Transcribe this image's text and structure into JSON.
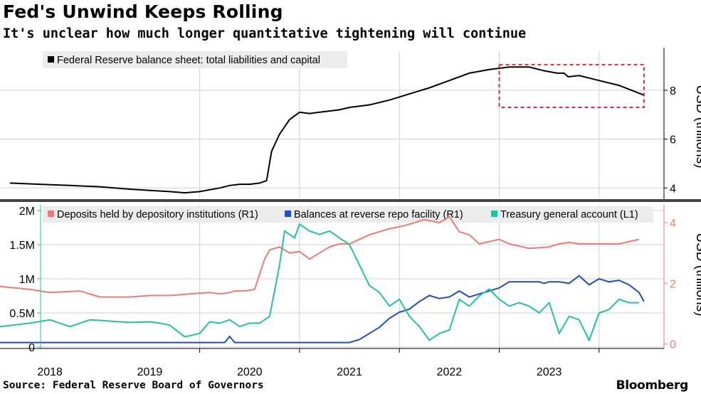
{
  "header": {
    "title": "Fed's Unwind Keeps Rolling",
    "subtitle": "It's unclear how much longer quantitative tightening will continue"
  },
  "footer": {
    "source": "Source: Federal Reserve Board of Governors",
    "brand": "Bloomberg"
  },
  "colors": {
    "balance_sheet": "#000000",
    "deposits": "#ef7a72",
    "reverse_repo": "#1f4fbf",
    "tga": "#1ec4a0",
    "highlight_box": "#e8273c",
    "grid": "#cfcfcf",
    "legend_bg": "#ececec"
  },
  "chart_data": [
    {
      "type": "line",
      "panel": "top",
      "series": [
        {
          "name": "Federal Reserve balance sheet: total liabilities and capital",
          "axis": "right",
          "x": [
            2017.6,
            2017.9,
            2018.2,
            2018.5,
            2018.8,
            2019.0,
            2019.2,
            2019.35,
            2019.5,
            2019.7,
            2019.8,
            2019.9,
            2020.0,
            2020.1,
            2020.17,
            2020.22,
            2020.3,
            2020.4,
            2020.5,
            2020.6,
            2020.7,
            2020.8,
            2020.9,
            2021.0,
            2021.2,
            2021.4,
            2021.6,
            2021.8,
            2022.0,
            2022.2,
            2022.4,
            2022.6,
            2022.8,
            2022.95,
            2023.08,
            2023.15,
            2023.19,
            2023.3,
            2023.5,
            2023.7,
            2023.95
          ],
          "y": [
            4.2,
            4.15,
            4.1,
            4.05,
            3.95,
            3.9,
            3.85,
            3.8,
            3.85,
            4.0,
            4.1,
            4.15,
            4.15,
            4.2,
            4.3,
            5.5,
            6.2,
            6.8,
            7.1,
            7.05,
            7.1,
            7.15,
            7.2,
            7.3,
            7.4,
            7.6,
            7.85,
            8.1,
            8.4,
            8.7,
            8.85,
            8.95,
            8.95,
            8.8,
            8.7,
            8.7,
            8.55,
            8.6,
            8.4,
            8.2,
            7.8
          ]
        }
      ],
      "y_right": {
        "label": "USD (trillions)",
        "ticks": [
          4,
          6,
          8
        ],
        "range": [
          3.6,
          9.6
        ]
      },
      "annotations": [
        {
          "type": "dashed-box",
          "x_range": [
            2022.5,
            2023.95
          ],
          "y_range": [
            7.3,
            9.05
          ]
        }
      ]
    },
    {
      "type": "line",
      "panel": "bottom",
      "legend": [
        "Deposits held by depository institutions (R1)",
        "Balances at reverse repo facility (R1)",
        "Treasury general account (L1)"
      ],
      "series": [
        {
          "name": "Deposits held by depository institutions",
          "axis": "right",
          "x": [
            2017.5,
            2017.8,
            2018.0,
            2018.3,
            2018.5,
            2018.8,
            2019.0,
            2019.2,
            2019.4,
            2019.6,
            2019.7,
            2019.8,
            2019.85,
            2019.95,
            2020.05,
            2020.1,
            2020.15,
            2020.2,
            2020.3,
            2020.4,
            2020.5,
            2020.6,
            2020.7,
            2020.8,
            2020.9,
            2021.0,
            2021.2,
            2021.4,
            2021.55,
            2021.75,
            2021.9,
            2022.0,
            2022.1,
            2022.2,
            2022.3,
            2022.5,
            2022.6,
            2022.8,
            2023.0,
            2023.1,
            2023.2,
            2023.3,
            2023.5,
            2023.7,
            2023.9
          ],
          "y": [
            1.9,
            1.8,
            1.7,
            1.75,
            1.55,
            1.55,
            1.6,
            1.6,
            1.65,
            1.7,
            1.65,
            1.7,
            1.75,
            1.75,
            1.8,
            2.3,
            2.8,
            3.1,
            3.2,
            3.0,
            3.05,
            2.8,
            3.0,
            3.2,
            3.3,
            3.3,
            3.6,
            3.8,
            3.9,
            4.1,
            4.0,
            4.2,
            3.7,
            3.6,
            3.3,
            3.45,
            3.3,
            3.15,
            3.2,
            3.3,
            3.35,
            3.3,
            3.3,
            3.3,
            3.45
          ]
        },
        {
          "name": "Balances at reverse repo facility",
          "axis": "right",
          "x": [
            2017.5,
            2018.0,
            2018.5,
            2019.0,
            2019.5,
            2019.75,
            2019.8,
            2019.85,
            2020.0,
            2020.5,
            2020.9,
            2021.0,
            2021.1,
            2021.2,
            2021.3,
            2021.4,
            2021.5,
            2021.6,
            2021.7,
            2021.8,
            2021.9,
            2022.0,
            2022.1,
            2022.2,
            2022.3,
            2022.4,
            2022.5,
            2022.6,
            2022.7,
            2022.8,
            2022.9,
            2022.95,
            2023.0,
            2023.1,
            2023.2,
            2023.3,
            2023.4,
            2023.5,
            2023.6,
            2023.7,
            2023.8,
            2023.9,
            2023.95
          ],
          "y": [
            0.05,
            0.05,
            0.05,
            0.05,
            0.05,
            0.05,
            0.25,
            0.05,
            0.05,
            0.05,
            0.05,
            0.05,
            0.15,
            0.35,
            0.55,
            0.85,
            1.05,
            1.15,
            1.4,
            1.6,
            1.5,
            1.55,
            1.75,
            1.55,
            1.65,
            1.75,
            1.85,
            2.05,
            2.05,
            2.05,
            2.05,
            2.0,
            2.05,
            2.05,
            2.0,
            2.25,
            1.95,
            2.15,
            2.05,
            2.1,
            1.95,
            1.7,
            1.4
          ]
        },
        {
          "name": "Treasury general account",
          "axis": "left",
          "x": [
            2017.5,
            2017.8,
            2018.0,
            2018.2,
            2018.4,
            2018.6,
            2018.8,
            2019.0,
            2019.1,
            2019.2,
            2019.35,
            2019.5,
            2019.6,
            2019.7,
            2019.8,
            2019.9,
            2020.0,
            2020.1,
            2020.2,
            2020.3,
            2020.35,
            2020.45,
            2020.5,
            2020.6,
            2020.7,
            2020.8,
            2020.9,
            2021.0,
            2021.1,
            2021.2,
            2021.3,
            2021.4,
            2021.5,
            2021.6,
            2021.7,
            2021.8,
            2021.9,
            2022.0,
            2022.1,
            2022.2,
            2022.3,
            2022.4,
            2022.5,
            2022.6,
            2022.7,
            2022.8,
            2022.9,
            2023.0,
            2023.1,
            2023.2,
            2023.3,
            2023.4,
            2023.5,
            2023.6,
            2023.7,
            2023.8,
            2023.9
          ],
          "y": [
            300000,
            350000,
            400000,
            300000,
            400000,
            380000,
            360000,
            370000,
            350000,
            320000,
            150000,
            200000,
            370000,
            350000,
            400000,
            300000,
            350000,
            350000,
            450000,
            1200000,
            1700000,
            1600000,
            1800000,
            1700000,
            1650000,
            1700000,
            1600000,
            1500000,
            1200000,
            900000,
            800000,
            600000,
            700000,
            450000,
            300000,
            100000,
            200000,
            250000,
            700000,
            600000,
            750000,
            850000,
            700000,
            600000,
            650000,
            600000,
            500000,
            650000,
            200000,
            450000,
            400000,
            100000,
            500000,
            550000,
            700000,
            650000,
            650000
          ]
        }
      ],
      "y_left": {
        "ticks": [
          "0",
          "0.5M",
          "1M",
          "1.5M",
          "2M"
        ],
        "range": [
          0,
          2000000
        ]
      },
      "y_right": {
        "label": "USD (trillions)",
        "ticks": [
          0,
          2,
          4
        ],
        "range": [
          -0.1,
          4.4
        ]
      }
    }
  ],
  "x_axis": {
    "ticks": [
      "2018",
      "2019",
      "2020",
      "2021",
      "2022",
      "2023"
    ],
    "range": [
      2017.5,
      2024.15
    ]
  }
}
